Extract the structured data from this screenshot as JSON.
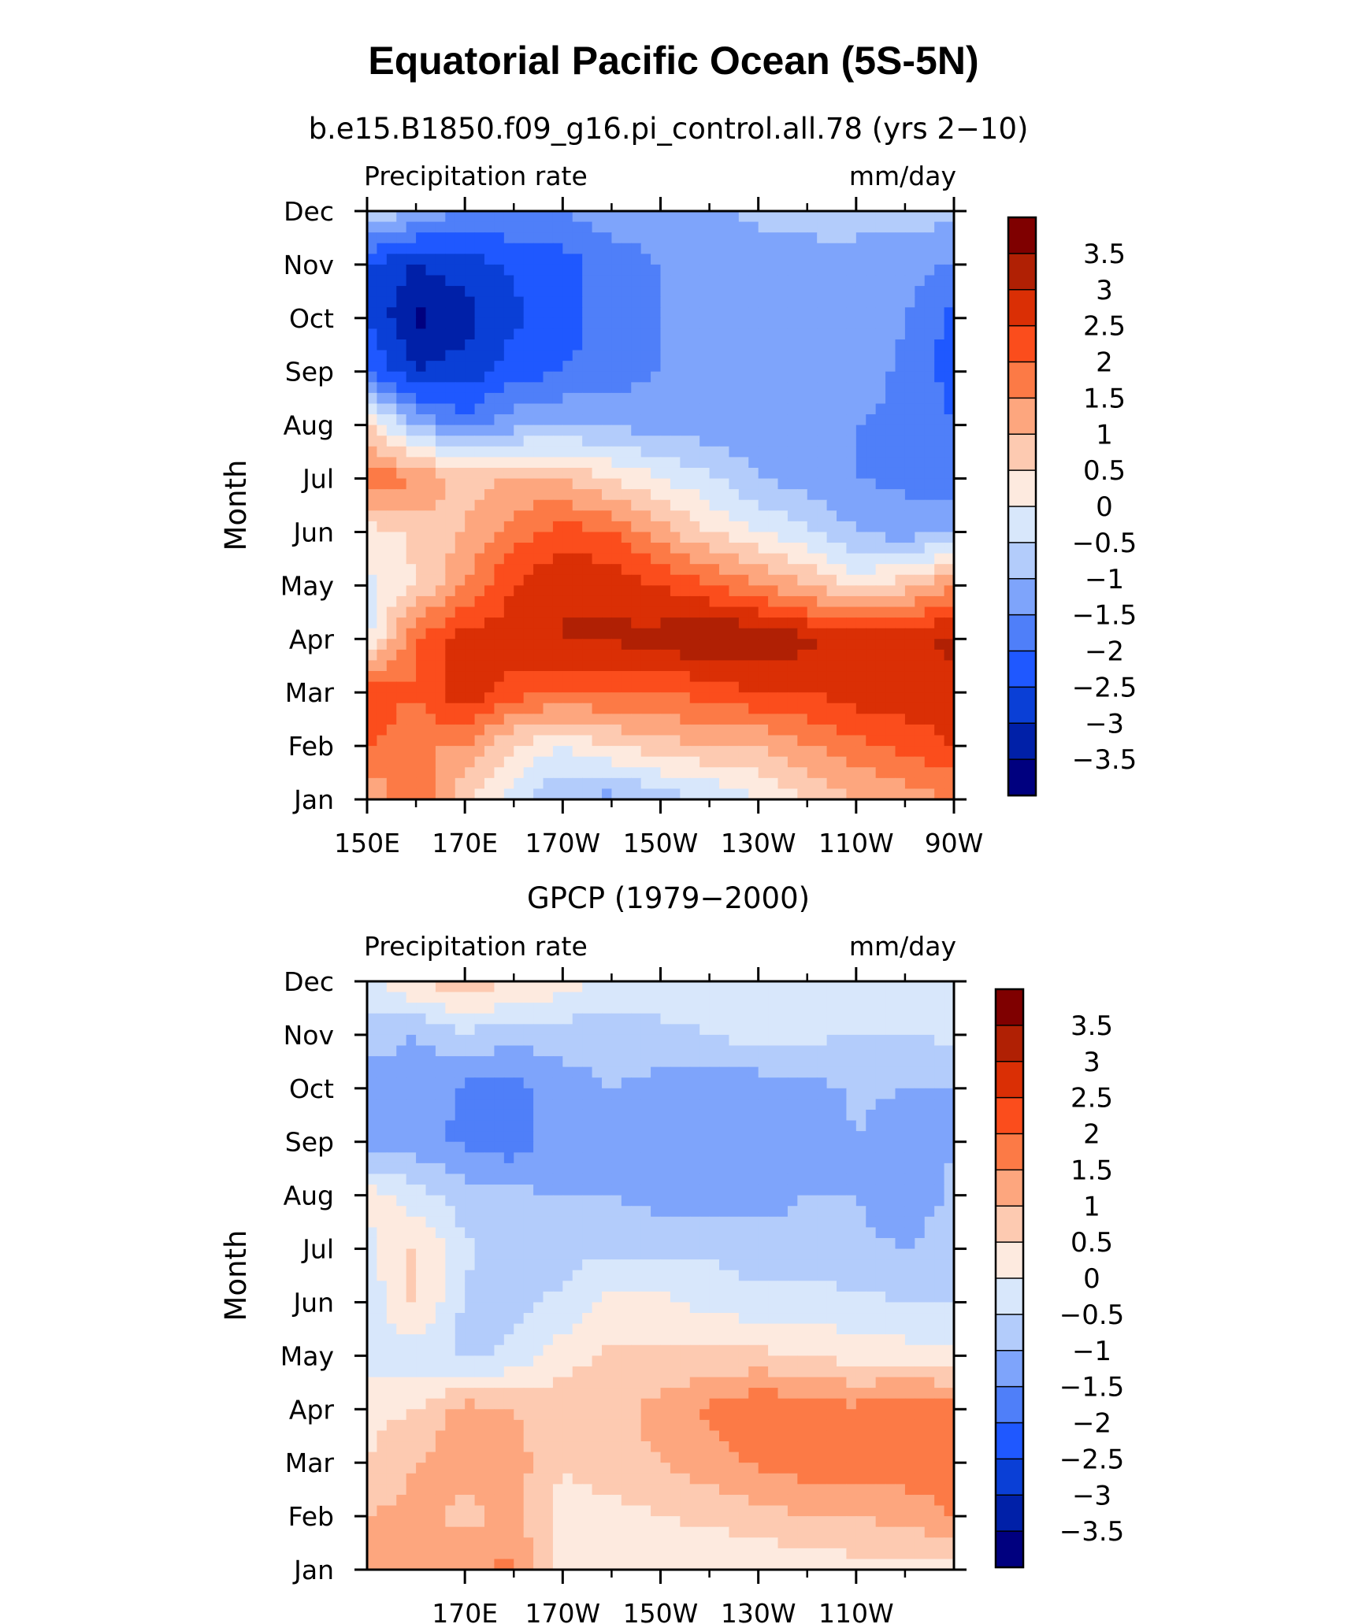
{
  "figure": {
    "title": "Equatorial Pacific Ocean (5S-5N)"
  },
  "colors": {
    "levels": [
      -3.5,
      -3,
      -2.5,
      -2,
      -1.5,
      -1,
      -0.5,
      0,
      0.5,
      1,
      1.5,
      2,
      2.5,
      3,
      3.5
    ],
    "palette": [
      "#00007f",
      "#0020a8",
      "#0a3fd6",
      "#1f58ff",
      "#4f7ff9",
      "#7ea4fb",
      "#b3ccfb",
      "#d8e7fb",
      "#fdeadf",
      "#fdcab1",
      "#fda67e",
      "#fc7a46",
      "#fb4d1c",
      "#da2f05",
      "#b02004",
      "#7f0000"
    ]
  },
  "chart_data": [
    {
      "type": "heatmap",
      "title": "b.e15.B1850.f09_g16.pi_control.all.78 (yrs 2−10)",
      "left_label": "Precipitation rate",
      "right_label": "mm/day",
      "ylabel": "Month",
      "x_tick_labels": [
        "150E",
        "170E",
        "170W",
        "150W",
        "130W",
        "110W",
        "90W"
      ],
      "x_ticks": [
        150,
        170,
        190,
        210,
        230,
        250,
        270
      ],
      "x_minor_ticks": [
        160,
        180,
        200,
        220,
        240,
        260
      ],
      "y_tick_labels": [
        "Jan",
        "Feb",
        "Mar",
        "Apr",
        "May",
        "Jun",
        "Jul",
        "Aug",
        "Sep",
        "Oct",
        "Nov",
        "Dec"
      ],
      "xlim": [
        150,
        270
      ],
      "ylim": [
        1,
        12
      ],
      "colorbar_labels": [
        "3.5",
        "3",
        "2.5",
        "2",
        "1.5",
        "1",
        "0.5",
        "0",
        "−0.5",
        "−1",
        "−1.5",
        "−2",
        "−2.5",
        "−3",
        "−3.5"
      ],
      "x": [
        150,
        160,
        170,
        180,
        190,
        200,
        210,
        220,
        230,
        240,
        250,
        260,
        270
      ],
      "y": [
        1,
        2,
        3,
        4,
        5,
        6,
        7,
        8,
        9,
        10,
        11,
        12
      ],
      "z": [
        [
          1.0,
          2.0,
          0.5,
          -0.3,
          -1.0,
          -1.2,
          -0.8,
          -0.5,
          0.0,
          0.5,
          1.0,
          1.2,
          1.5
        ],
        [
          2.0,
          1.5,
          1.5,
          0.5,
          0.0,
          0.5,
          0.8,
          1.0,
          1.0,
          1.5,
          1.8,
          2.2,
          2.5
        ],
        [
          2.5,
          2.0,
          3.0,
          2.2,
          2.0,
          2.0,
          2.0,
          2.2,
          2.5,
          2.5,
          2.8,
          2.8,
          2.8
        ],
        [
          -0.2,
          2.0,
          2.8,
          2.8,
          3.0,
          3.1,
          3.2,
          3.6,
          3.5,
          3.1,
          2.8,
          2.8,
          3.2
        ],
        [
          -0.2,
          0.5,
          1.5,
          2.5,
          3.0,
          2.8,
          2.5,
          2.0,
          1.5,
          1.0,
          0.3,
          0.8,
          1.5
        ],
        [
          0.3,
          0.6,
          1.0,
          1.8,
          2.2,
          2.0,
          1.2,
          0.5,
          0.0,
          -0.4,
          -1.0,
          -1.3,
          -1.0
        ],
        [
          2.0,
          1.5,
          0.8,
          1.0,
          1.0,
          0.5,
          0.0,
          -0.4,
          -1.0,
          -1.3,
          -1.5,
          -1.6,
          -1.8
        ],
        [
          0.5,
          -1.0,
          -1.8,
          -1.2,
          -1.0,
          -1.1,
          -1.2,
          -1.3,
          -1.4,
          -1.4,
          -1.5,
          -1.6,
          -2.0
        ],
        [
          -2.0,
          -3.0,
          -2.8,
          -2.2,
          -2.0,
          -1.8,
          -1.5,
          -1.3,
          -1.3,
          -1.3,
          -1.3,
          -1.6,
          -2.2
        ],
        [
          -2.5,
          -3.6,
          -3.2,
          -2.6,
          -2.2,
          -1.8,
          -1.5,
          -1.2,
          -1.2,
          -1.2,
          -1.2,
          -1.5,
          -2.2
        ],
        [
          -2.5,
          -3.0,
          -2.8,
          -2.4,
          -2.2,
          -1.8,
          -1.5,
          -1.2,
          -1.2,
          -1.2,
          -1.2,
          -1.3,
          -1.6
        ],
        [
          -0.5,
          -1.0,
          -1.5,
          -1.5,
          -1.5,
          -1.2,
          -1.2,
          -1.1,
          -0.9,
          -0.8,
          -0.8,
          -0.8,
          -0.8
        ]
      ]
    },
    {
      "type": "heatmap",
      "title": "GPCP (1979−2000)",
      "left_label": "Precipitation rate",
      "right_label": "mm/day",
      "ylabel": "Month",
      "x_tick_labels": [
        "170E",
        "170W",
        "150W",
        "130W",
        "110W"
      ],
      "x_ticks": [
        170,
        190,
        210,
        230,
        250
      ],
      "x_minor_ticks": [
        180,
        200,
        220,
        240,
        260
      ],
      "y_tick_labels": [
        "Jan",
        "Feb",
        "Mar",
        "Apr",
        "May",
        "Jun",
        "Jul",
        "Aug",
        "Sep",
        "Oct",
        "Nov",
        "Dec"
      ],
      "xlim": [
        150,
        270
      ],
      "ylim": [
        1,
        12
      ],
      "colorbar_labels": [
        "3.5",
        "3",
        "2.5",
        "2",
        "1.5",
        "1",
        "0.5",
        "0",
        "−0.5",
        "−1",
        "−1.5",
        "−2",
        "−2.5",
        "−3",
        "−3.5"
      ],
      "x": [
        150,
        160,
        170,
        180,
        190,
        200,
        210,
        220,
        230,
        240,
        250,
        260,
        270
      ],
      "y": [
        1,
        2,
        3,
        4,
        5,
        6,
        7,
        8,
        9,
        10,
        11,
        12
      ],
      "z": [
        [
          1.0,
          1.2,
          1.5,
          1.6,
          0.3,
          0.2,
          0.1,
          0.1,
          0.1,
          0.2,
          0.3,
          0.3,
          0.3
        ],
        [
          1.0,
          1.2,
          0.8,
          1.2,
          0.2,
          0.3,
          0.5,
          0.6,
          0.8,
          1.0,
          1.0,
          1.2,
          1.5
        ],
        [
          0.5,
          1.0,
          1.3,
          1.2,
          0.6,
          0.8,
          1.0,
          1.3,
          1.6,
          1.8,
          1.8,
          1.8,
          1.8
        ],
        [
          0.3,
          0.5,
          1.2,
          1.0,
          0.8,
          0.8,
          1.2,
          1.6,
          2.0,
          1.8,
          1.6,
          2.0,
          1.8
        ],
        [
          -0.3,
          -0.3,
          -0.6,
          -0.4,
          0.3,
          0.6,
          0.6,
          0.6,
          0.6,
          0.5,
          0.3,
          0.2,
          0.1
        ],
        [
          -0.3,
          0.6,
          -0.6,
          -0.6,
          -0.4,
          0.2,
          0.1,
          -0.2,
          -0.3,
          -0.3,
          -0.4,
          -0.5,
          -0.5
        ],
        [
          -0.2,
          0.6,
          -0.4,
          -0.7,
          -0.7,
          -0.6,
          -0.6,
          -0.6,
          -0.8,
          -0.8,
          -0.9,
          -1.0,
          -0.8
        ],
        [
          0.3,
          -0.3,
          -0.8,
          -0.9,
          -1.0,
          -1.0,
          -1.2,
          -1.3,
          -1.2,
          -1.0,
          -1.0,
          -1.3,
          -0.9
        ],
        [
          -1.3,
          -1.3,
          -1.6,
          -1.8,
          -1.2,
          -1.2,
          -1.5,
          -1.5,
          -1.5,
          -1.4,
          -1.0,
          -1.3,
          -1.0
        ],
        [
          -1.2,
          -1.2,
          -1.6,
          -1.7,
          -1.2,
          -1.0,
          -1.2,
          -1.3,
          -1.3,
          -1.2,
          -0.9,
          -1.0,
          -1.0
        ],
        [
          -0.8,
          -1.0,
          -0.6,
          -0.8,
          -0.8,
          -0.8,
          -0.6,
          -0.5,
          -0.3,
          -0.4,
          -0.5,
          -0.5,
          -0.4
        ],
        [
          -0.2,
          0.5,
          0.9,
          0.5,
          0.3,
          -0.2,
          -0.3,
          -0.2,
          -0.3,
          -0.3,
          -0.3,
          -0.4,
          -0.4
        ]
      ]
    }
  ]
}
